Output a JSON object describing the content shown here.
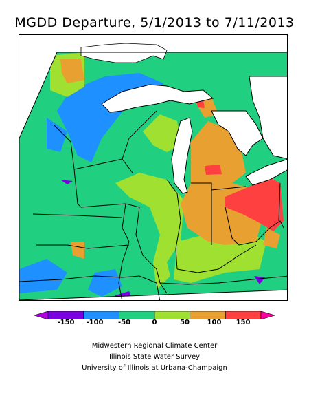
{
  "title": "MGDD Departure, 5/1/2013 to 7/11/2013",
  "legend": {
    "ticks": [
      "-150",
      "-100",
      "-50",
      "0",
      "50",
      "100",
      "150"
    ],
    "colors": [
      "#b000e0",
      "#7a00e0",
      "#1e90ff",
      "#20d080",
      "#a0e030",
      "#e8a030",
      "#ff4040",
      "#ff00a0"
    ]
  },
  "credits": {
    "line1": "Midwestern Regional Climate Center",
    "line2": "Illinois State Water Survey",
    "line3": "University of Illinois at Urbana-Champaign"
  }
}
